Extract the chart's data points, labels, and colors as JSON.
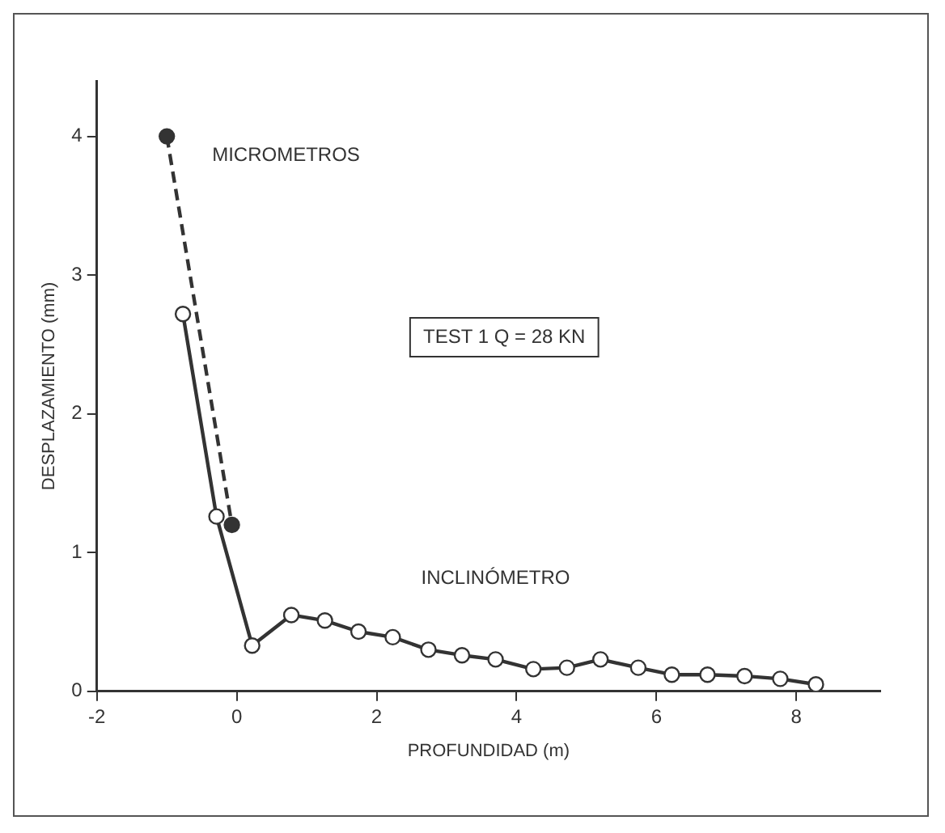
{
  "chart_data": {
    "type": "line",
    "xlabel": "PROFUNDIDAD (m)",
    "ylabel": "DESPLAZAMIENTO (mm)",
    "annotations": [
      "TEST 1 Q = 28 KN"
    ],
    "xlim": [
      -2,
      9.2
    ],
    "ylim": [
      0,
      4.4
    ],
    "xticks": [
      -2,
      0,
      2,
      4,
      6,
      8
    ],
    "yticks": [
      0,
      1,
      2,
      3,
      4
    ],
    "grid": false,
    "legend": false,
    "series": [
      {
        "name": "MICROMETROS",
        "color": "#333333",
        "line_style": "dashed",
        "marker": "circle",
        "x": [
          -1,
          -0.07
        ],
        "values": [
          4.0,
          1.2
        ]
      },
      {
        "name": "INCLINÓMETRO",
        "color": "#333333",
        "line_style": "solid",
        "marker": "circle",
        "x": [
          -0.77,
          -0.29,
          0.22,
          0.78,
          1.26,
          1.74,
          2.23,
          2.74,
          3.22,
          3.7,
          4.24,
          4.72,
          5.2,
          5.74,
          6.22,
          6.73,
          7.26,
          7.77,
          8.28
        ],
        "values": [
          2.72,
          1.26,
          0.33,
          0.55,
          0.51,
          0.43,
          0.39,
          0.3,
          0.26,
          0.23,
          0.16,
          0.17,
          0.23,
          0.17,
          0.12,
          0.12,
          0.11,
          0.09,
          0.05
        ]
      }
    ]
  }
}
